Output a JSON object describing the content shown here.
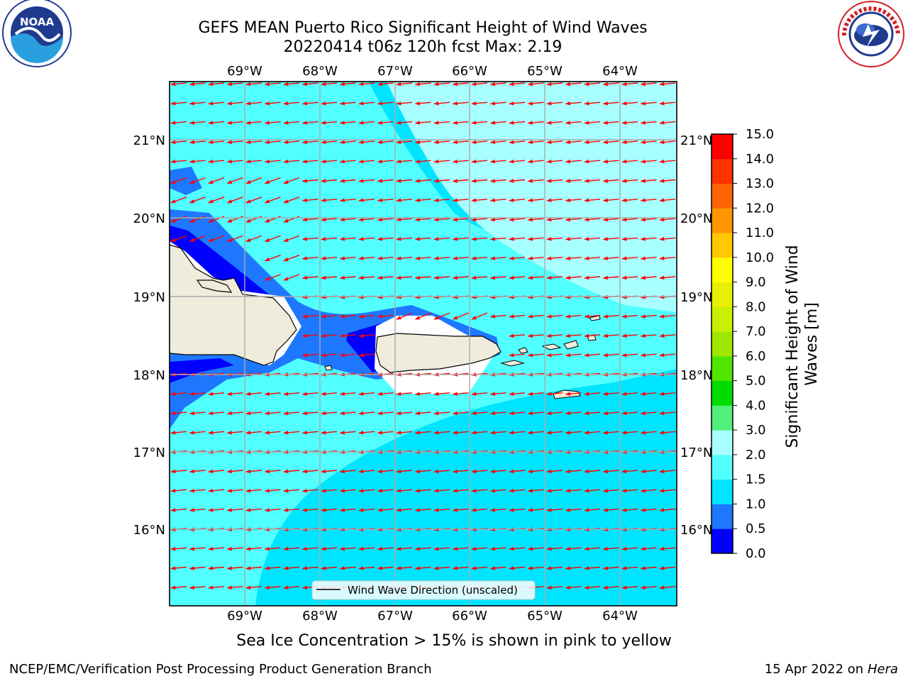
{
  "header": {
    "title_line1": "GEFS MEAN Puerto Rico Significant Height of Wind Waves",
    "title_line2": "20220414 t06z 120h fcst   Max: 2.19"
  },
  "logos": {
    "left": {
      "name": "NOAA",
      "ring_text": "NATIONAL OCEANIC AND ATMOSPHERIC ADMINISTRATION · U.S. DEPARTMENT OF COMMERCE",
      "color": "#1f3b8f"
    },
    "right": {
      "name": "NATIONAL WEATHER SERVICE",
      "color": "#d11f26"
    }
  },
  "map": {
    "lon_labels": [
      "69°W",
      "68°W",
      "67°W",
      "66°W",
      "65°W",
      "64°W"
    ],
    "lat_labels": [
      "21°N",
      "20°N",
      "19°N",
      "18°N",
      "17°N",
      "16°N"
    ],
    "legend_label": "Wind Wave Direction (unscaled)",
    "arrow_color": "#ff0000",
    "land_color": "#efecdc",
    "wave_direction": "from east to west"
  },
  "colorbar": {
    "label": "Significant Height of Wind Waves [m]",
    "ticks": [
      "0.0",
      "0.5",
      "1.0",
      "1.5",
      "2.0",
      "3.0",
      "4.0",
      "5.0",
      "6.0",
      "7.0",
      "8.0",
      "9.0",
      "10.0",
      "11.0",
      "12.0",
      "13.0",
      "14.0",
      "15.0"
    ],
    "colors": [
      "#0000ff",
      "#1e78ff",
      "#00e5ff",
      "#52ffff",
      "#a8ffff",
      "#50f07a",
      "#00dc00",
      "#50e600",
      "#a0e600",
      "#c8f000",
      "#e6f000",
      "#ffff00",
      "#ffc800",
      "#ff9600",
      "#ff6400",
      "#ff3200",
      "#ff0000"
    ]
  },
  "footer": {
    "subtitle": "Sea Ice Concentration > 15% is shown in pink to yellow",
    "left": "NCEP/EMC/Verification Post Processing Product Generation Branch",
    "right_date": "15 Apr 2022 on ",
    "right_host": "Hera"
  }
}
